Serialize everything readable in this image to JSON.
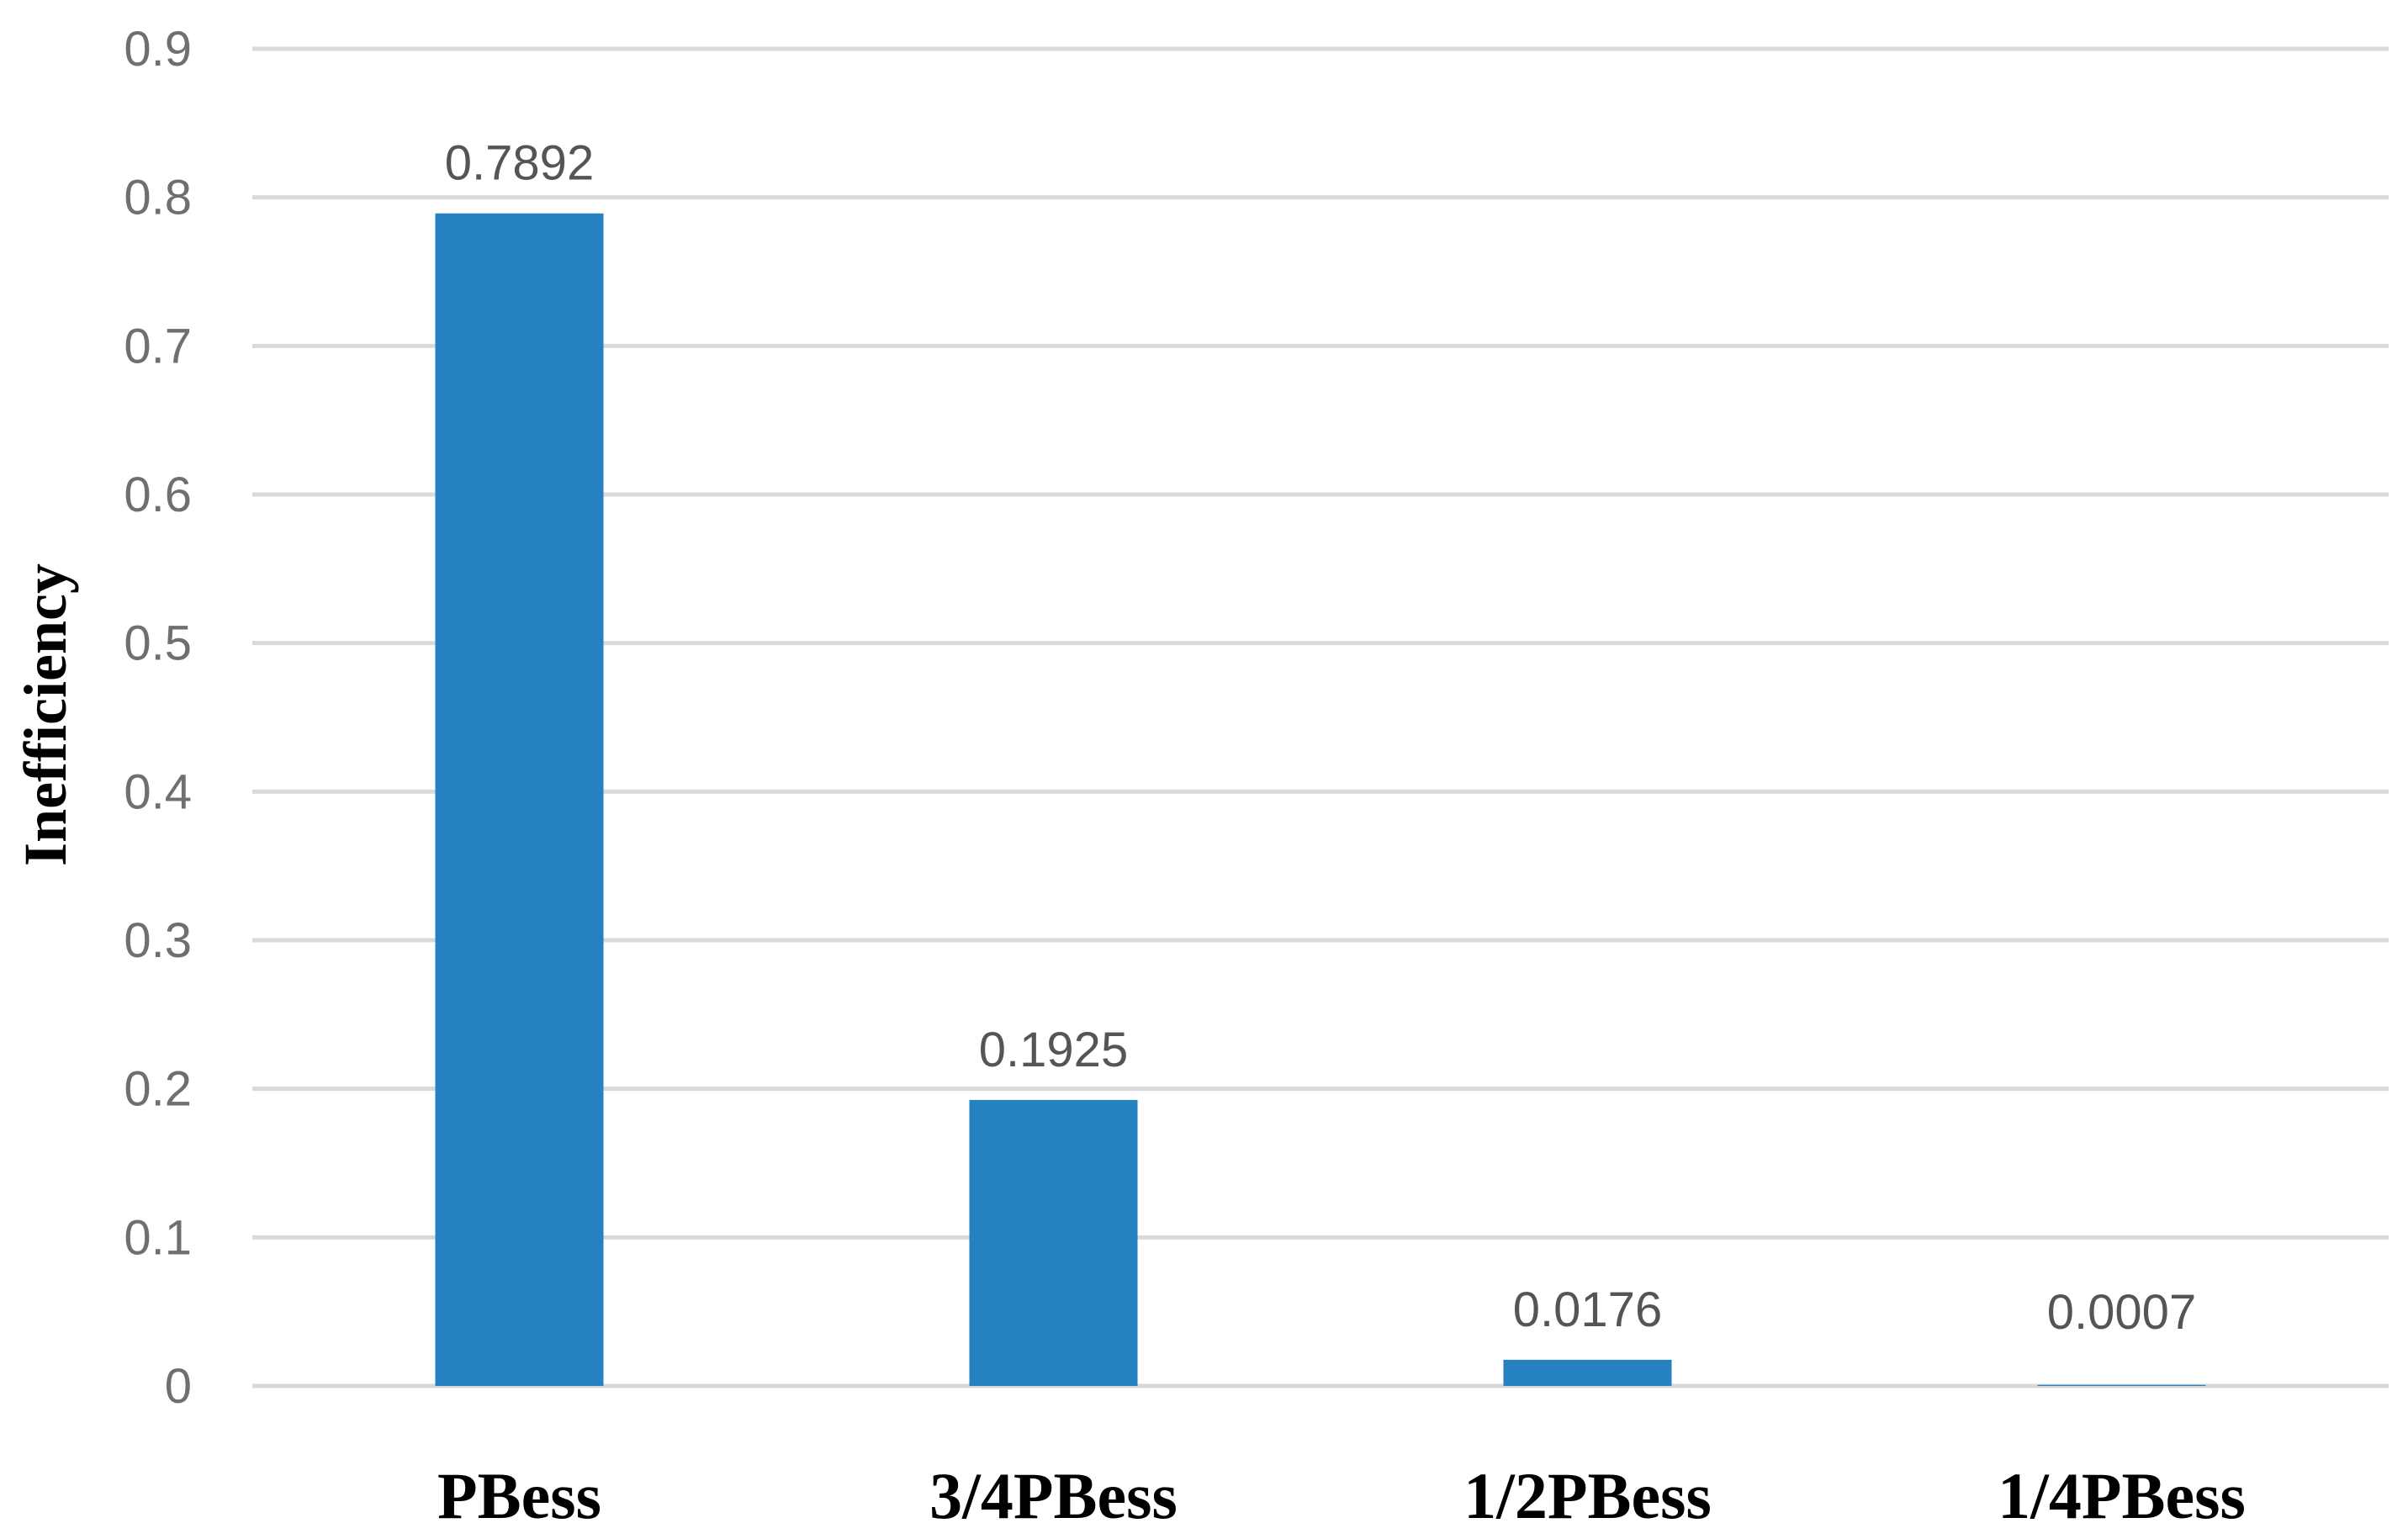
{
  "chart_data": {
    "type": "bar",
    "title": "",
    "xlabel": "",
    "ylabel": "Inefficiency",
    "categories": [
      "PBess",
      "3/4PBess",
      "1/2PBess",
      "1/4PBess"
    ],
    "values": [
      0.7892,
      0.1925,
      0.0176,
      0.0007
    ],
    "data_labels": [
      "0.7892",
      "0.1925",
      "0.0176",
      "0.0007"
    ],
    "ylim": [
      0,
      0.9
    ],
    "yticks": [
      "0",
      "0.1",
      "0.2",
      "0.3",
      "0.4",
      "0.5",
      "0.6",
      "0.7",
      "0.8",
      "0.9"
    ],
    "grid": true,
    "legend": "none",
    "bar_color": "#2681c0"
  }
}
